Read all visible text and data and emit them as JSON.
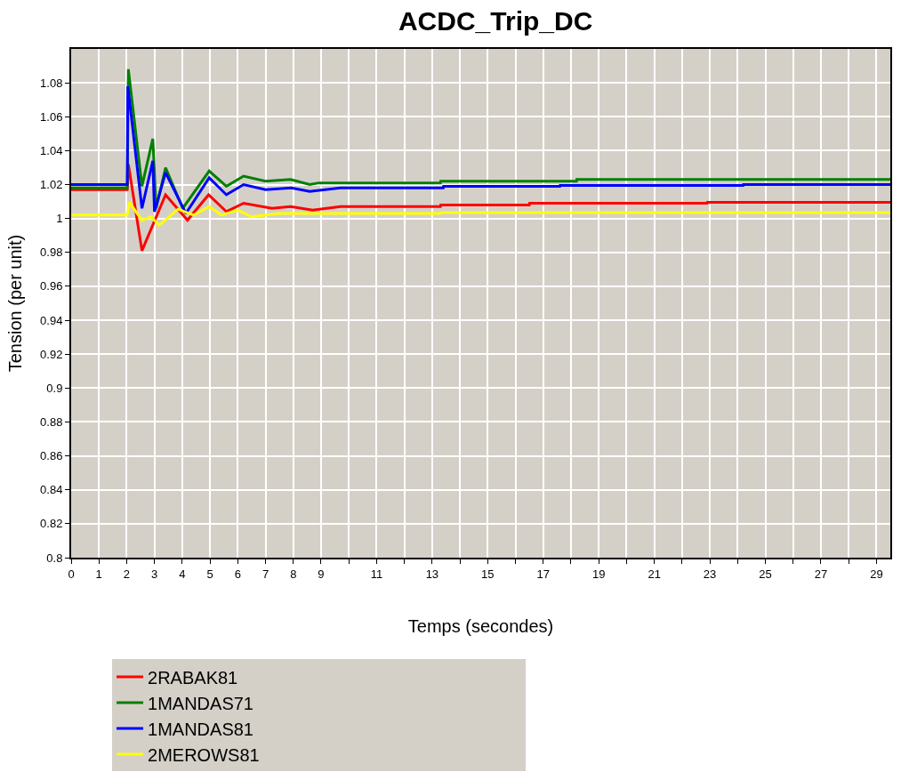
{
  "chart_data": {
    "type": "line",
    "title": "ACDC_Trip_DC",
    "xlabel": "Temps (secondes)",
    "ylabel": "Tension (per unit)",
    "xlim": [
      0,
      29.5
    ],
    "ylim": [
      0.8,
      1.1
    ],
    "xticks": [
      0,
      1,
      2,
      3,
      4,
      5,
      6,
      7,
      8,
      9,
      {
        "value": 10,
        "label": null
      },
      11,
      {
        "value": 12,
        "label": null
      },
      13,
      {
        "value": 14,
        "label": null
      },
      15,
      {
        "value": 16,
        "label": null
      },
      17,
      {
        "value": 18,
        "label": null
      },
      19,
      {
        "value": 20,
        "label": null
      },
      21,
      {
        "value": 22,
        "label": null
      },
      23,
      {
        "value": 24,
        "label": null
      },
      25,
      {
        "value": 26,
        "label": null
      },
      27,
      {
        "value": 28,
        "label": null
      },
      29
    ],
    "yticks": [
      0.8,
      0.82,
      0.84,
      0.86,
      0.88,
      0.9,
      0.92,
      0.94,
      0.96,
      0.98,
      1,
      1.02,
      1.04,
      1.06,
      1.08
    ],
    "grid": true,
    "legend": "bottom",
    "marker": "none",
    "line_style": "solid",
    "series": [
      {
        "name": "2RABAK81",
        "color": "#ff0000",
        "x": [
          0,
          2.02,
          2.06,
          2.55,
          3.4,
          4.19,
          4.95,
          5.59,
          6.21,
          7.23,
          7.9,
          8.7,
          9.7,
          13.3,
          13.31,
          16.5,
          16.51,
          22.9,
          22.91,
          29.5
        ],
        "values": [
          1.017,
          1.017,
          1.032,
          0.981,
          1.014,
          0.999,
          1.014,
          1.004,
          1.009,
          1.006,
          1.007,
          1.005,
          1.007,
          1.007,
          1.008,
          1.008,
          1.009,
          1.009,
          1.0095,
          1.0095
        ]
      },
      {
        "name": "1MANDAS71",
        "color": "#008000",
        "x": [
          0,
          2.02,
          2.06,
          2.55,
          2.94,
          3.06,
          3.4,
          4.02,
          4.97,
          5.59,
          6.21,
          7.0,
          7.9,
          8.59,
          8.92,
          13.3,
          13.31,
          18.2,
          18.21,
          29.5
        ],
        "values": [
          1.018,
          1.018,
          1.088,
          1.019,
          1.047,
          1.006,
          1.03,
          1.006,
          1.028,
          1.019,
          1.025,
          1.022,
          1.023,
          1.02,
          1.021,
          1.021,
          1.022,
          1.022,
          1.023,
          1.023
        ]
      },
      {
        "name": "1MANDAS81",
        "color": "#0000ff",
        "x": [
          0,
          2.02,
          2.04,
          2.55,
          2.94,
          3.0,
          3.4,
          4.13,
          4.97,
          5.59,
          6.21,
          7.0,
          7.93,
          8.59,
          9.7,
          13.4,
          13.41,
          17.6,
          17.61,
          24.2,
          24.21,
          29.5
        ],
        "values": [
          1.02,
          1.02,
          1.078,
          1.006,
          1.034,
          1.004,
          1.027,
          1.003,
          1.024,
          1.014,
          1.02,
          1.017,
          1.018,
          1.016,
          1.018,
          1.018,
          1.019,
          1.019,
          1.0195,
          1.0195,
          1.02,
          1.02
        ]
      },
      {
        "name": "2MEROWS81",
        "color": "#ffff00",
        "x": [
          0,
          2.02,
          2.1,
          2.55,
          2.88,
          3.17,
          3.85,
          4.41,
          4.97,
          5.41,
          6.0,
          6.5,
          7.45,
          9.0,
          13.3,
          13.31,
          29.5
        ],
        "values": [
          1.002,
          1.002,
          1.0095,
          0.999,
          1.001,
          0.996,
          1.0055,
          1.002,
          1.007,
          1.002,
          1.005,
          1.001,
          1.003,
          1.003,
          1.003,
          1.0035,
          1.0035
        ]
      }
    ]
  }
}
